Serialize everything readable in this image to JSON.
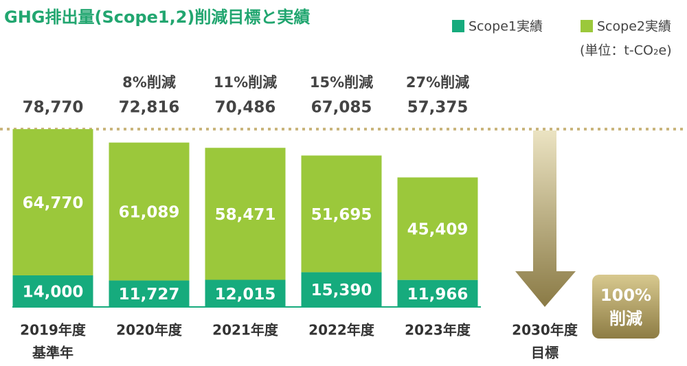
{
  "chart_data": {
    "type": "stacked_bar",
    "title": "GHG排出量(Scope1,2)削減目標と実績",
    "unit": "(単位：t-CO₂e)",
    "categories": [
      "2019年度",
      "2020年度",
      "2021年度",
      "2022年度",
      "2023年度",
      "2030年度"
    ],
    "category_sublabels": [
      "基準年",
      null,
      null,
      null,
      null,
      "目標"
    ],
    "series": [
      {
        "name": "Scope1実績",
        "color": "#16ab7d",
        "values": [
          14000,
          11727,
          12015,
          15390,
          11966,
          null
        ],
        "value_labels": [
          "14,000",
          "11,727",
          "12,015",
          "15,390",
          "11,966",
          null
        ]
      },
      {
        "name": "Scope2実績",
        "color": "#9bc83b",
        "values": [
          64770,
          61089,
          58471,
          51695,
          45409,
          null
        ],
        "value_labels": [
          "64,770",
          "61,089",
          "58,471",
          "51,695",
          "45,409",
          null
        ]
      }
    ],
    "totals": {
      "values": [
        78770,
        72816,
        70486,
        67085,
        57375,
        null
      ],
      "value_labels": [
        "78,770",
        "72,816",
        "70,486",
        "67,085",
        "57,375",
        null
      ]
    },
    "reductions": {
      "values": [
        null,
        8,
        11,
        15,
        27,
        null
      ],
      "value_labels": [
        null,
        "8%削減",
        "11%削減",
        "15%削減",
        "27%削減",
        null
      ]
    },
    "target_label": [
      "100%",
      "削減"
    ],
    "ylim": [
      0,
      80000
    ],
    "legend": "top-right"
  }
}
